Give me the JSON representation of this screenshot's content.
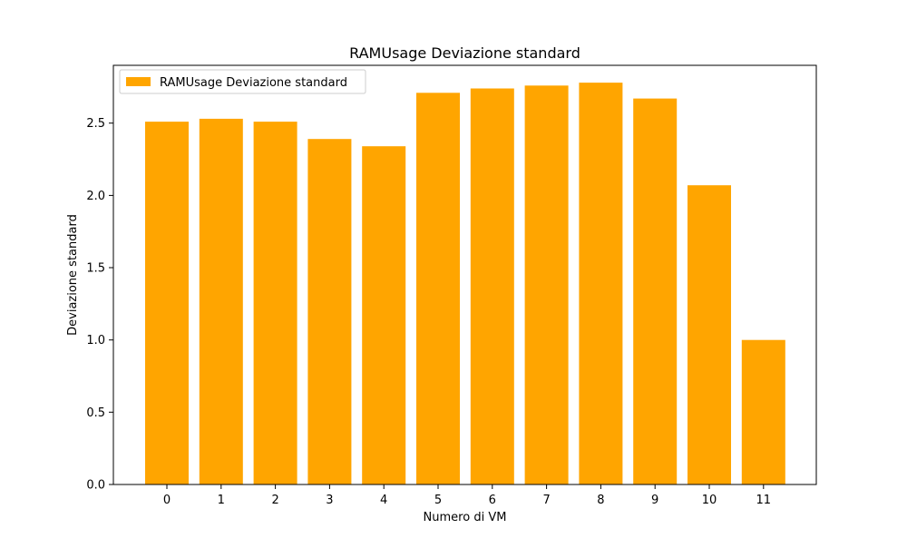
{
  "chart_data": {
    "type": "bar",
    "title": "RAMUsage Deviazione standard",
    "xlabel": "Numero di VM",
    "ylabel": "Deviazione standard",
    "categories": [
      "0",
      "1",
      "2",
      "3",
      "4",
      "5",
      "6",
      "7",
      "8",
      "9",
      "10",
      "11"
    ],
    "series": [
      {
        "name": "RAMUsage Deviazione standard",
        "values": [
          2.51,
          2.53,
          2.51,
          2.39,
          2.34,
          2.71,
          2.74,
          2.76,
          2.78,
          2.67,
          2.07,
          1.0
        ],
        "color": "#ffa500"
      }
    ],
    "ylim": [
      0,
      2.9
    ],
    "yticks": [
      "0.0",
      "0.5",
      "1.0",
      "1.5",
      "2.0",
      "2.5"
    ],
    "grid": false,
    "legend_position": "top-left"
  }
}
